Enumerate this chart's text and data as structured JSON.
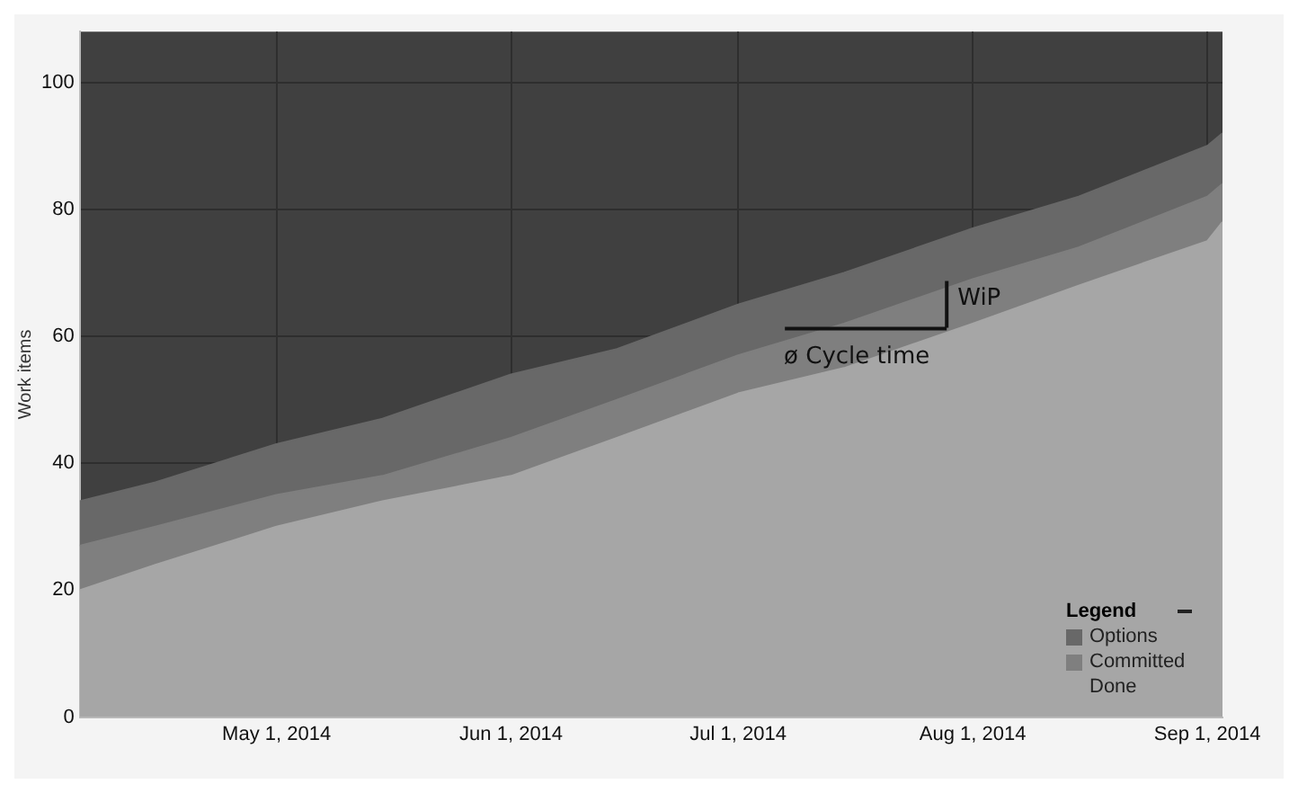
{
  "chart_data": {
    "type": "area",
    "ylabel": "Work items",
    "stacked": true,
    "grid": true,
    "legend": "bottom right",
    "legend_title": "Legend",
    "x": [
      "2014-04-05",
      "2014-04-15",
      "2014-05-01",
      "2014-05-15",
      "2014-06-01",
      "2014-06-15",
      "2014-07-01",
      "2014-07-15",
      "2014-08-01",
      "2014-08-15",
      "2014-09-01",
      "2014-09-03"
    ],
    "series": [
      {
        "name": "Done",
        "color": "#a6a6a6",
        "values": [
          20,
          24,
          30,
          34,
          38,
          44,
          51,
          55,
          62,
          68,
          75,
          78
        ]
      },
      {
        "name": "Committed",
        "color": "#7f7f7f",
        "values": [
          7,
          6,
          5,
          4,
          6,
          6,
          6,
          7,
          7,
          6,
          7,
          6
        ]
      },
      {
        "name": "Options",
        "color": "#686868",
        "values": [
          7,
          7,
          8,
          9,
          10,
          8,
          8,
          8,
          8,
          8,
          8,
          8
        ]
      }
    ],
    "xlim": [
      "2014-04-05",
      "2014-09-03"
    ],
    "xticks": [
      {
        "value": "2014-05-01",
        "label": "May 1, 2014"
      },
      {
        "value": "2014-06-01",
        "label": "Jun 1, 2014"
      },
      {
        "value": "2014-07-01",
        "label": "Jul 1, 2014"
      },
      {
        "value": "2014-08-01",
        "label": "Aug 1, 2014"
      },
      {
        "value": "2014-09-01",
        "label": "Sep 1, 2014"
      }
    ],
    "ylim": [
      0,
      108
    ],
    "yticks": [
      0,
      20,
      40,
      60,
      80,
      100
    ],
    "annotations": [
      "WiP",
      "ø Cycle time"
    ]
  }
}
